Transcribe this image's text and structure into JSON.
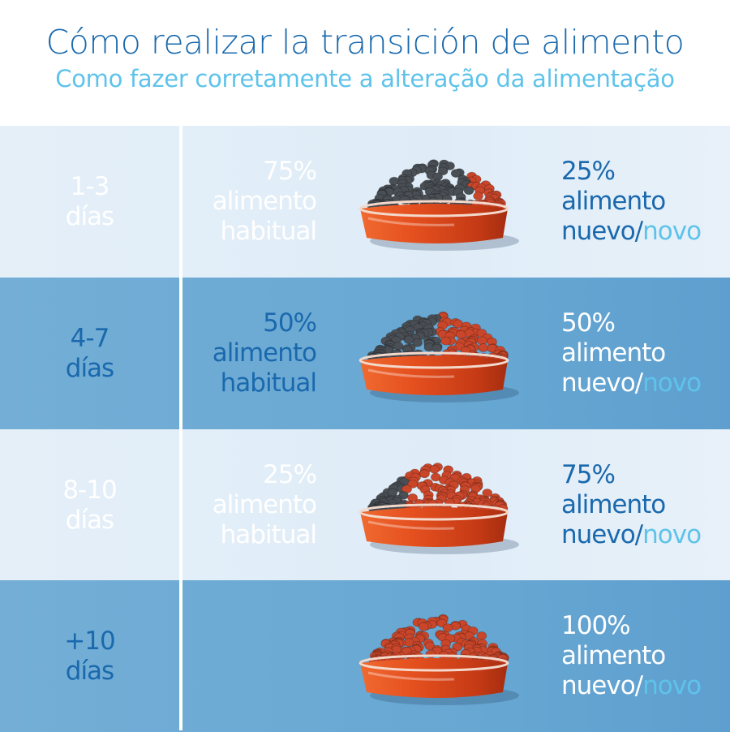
{
  "title": "Cómo realizar la transición de alimento",
  "subtitle": "Como fazer corretamente a alteração da alimentação",
  "colors": {
    "title": "#1a69ad",
    "subtitle": "#5ec3ea",
    "row_light": "#e2eef8",
    "row_dark": "#6aaad3",
    "bowl": "#e04a1c",
    "old_kibble": "#4a4f55",
    "new_kibble": "#c9462a"
  },
  "rows": [
    {
      "days": "1-3",
      "days_unit": "días",
      "old_pct": "75%",
      "old_label1": "alimento",
      "old_label2": "habitual",
      "new_pct": "25%",
      "new_label1": "alimento",
      "new_es": "nuevo/",
      "new_pt": "novo",
      "old_fraction": 0.75,
      "icon": "food-bowl-icon"
    },
    {
      "days": "4-7",
      "days_unit": "días",
      "old_pct": "50%",
      "old_label1": "alimento",
      "old_label2": "habitual",
      "new_pct": "50%",
      "new_label1": "alimento",
      "new_es": "nuevo/",
      "new_pt": "novo",
      "old_fraction": 0.5,
      "icon": "food-bowl-icon"
    },
    {
      "days": "8-10",
      "days_unit": "días",
      "old_pct": "25%",
      "old_label1": "alimento",
      "old_label2": "habitual",
      "new_pct": "75%",
      "new_label1": "alimento",
      "new_es": "nuevo/",
      "new_pt": "novo",
      "old_fraction": 0.25,
      "icon": "food-bowl-icon"
    },
    {
      "days": "+10",
      "days_unit": "días",
      "new_pct": "100%",
      "new_label1": "alimento",
      "new_es": "nuevo/",
      "new_pt": "novo",
      "old_fraction": 0,
      "icon": "food-bowl-icon"
    }
  ]
}
